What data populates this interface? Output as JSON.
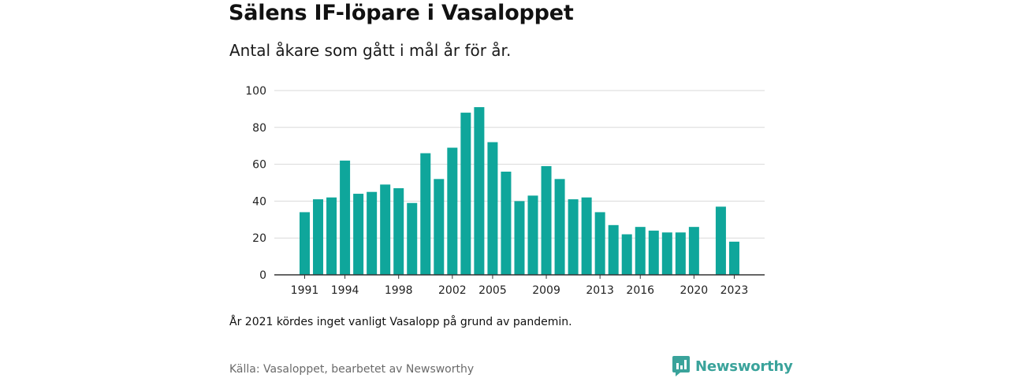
{
  "header": {
    "title": "Sälens IF-löpare i Vasaloppet",
    "subtitle": "Antal åkare som gått i mål år för år."
  },
  "footer": {
    "note": "År 2021 kördes inget vanligt Vasalopp på grund av pandemin.",
    "source": "Källa: Vasaloppet, bearbetet av Newsworthy",
    "brand": "Newsworthy",
    "brand_icon": "newsworthy-logo-icon"
  },
  "colors": {
    "bar": "#0fa69b",
    "brand": "#3aa39b",
    "grid": "#d9d9d9",
    "axis": "#333333"
  },
  "chart_data": {
    "type": "bar",
    "title": "Sälens IF-löpare i Vasaloppet",
    "subtitle": "Antal åkare som gått i mål år för år.",
    "xlabel": "",
    "ylabel": "",
    "ylim": [
      0,
      100
    ],
    "yticks": [
      0,
      20,
      40,
      60,
      80,
      100
    ],
    "xticks": [
      1991,
      1994,
      1998,
      2002,
      2005,
      2009,
      2013,
      2016,
      2020,
      2023
    ],
    "grid": true,
    "legend": "none",
    "categories": [
      1991,
      1992,
      1993,
      1994,
      1995,
      1996,
      1997,
      1998,
      1999,
      2000,
      2001,
      2002,
      2003,
      2004,
      2005,
      2006,
      2007,
      2008,
      2009,
      2010,
      2011,
      2012,
      2013,
      2014,
      2015,
      2016,
      2017,
      2018,
      2019,
      2020,
      2021,
      2022,
      2023
    ],
    "values": [
      34,
      41,
      42,
      62,
      44,
      45,
      49,
      47,
      39,
      66,
      52,
      69,
      88,
      91,
      72,
      56,
      40,
      43,
      59,
      52,
      41,
      42,
      34,
      27,
      22,
      26,
      24,
      23,
      23,
      26,
      null,
      37,
      18
    ]
  }
}
